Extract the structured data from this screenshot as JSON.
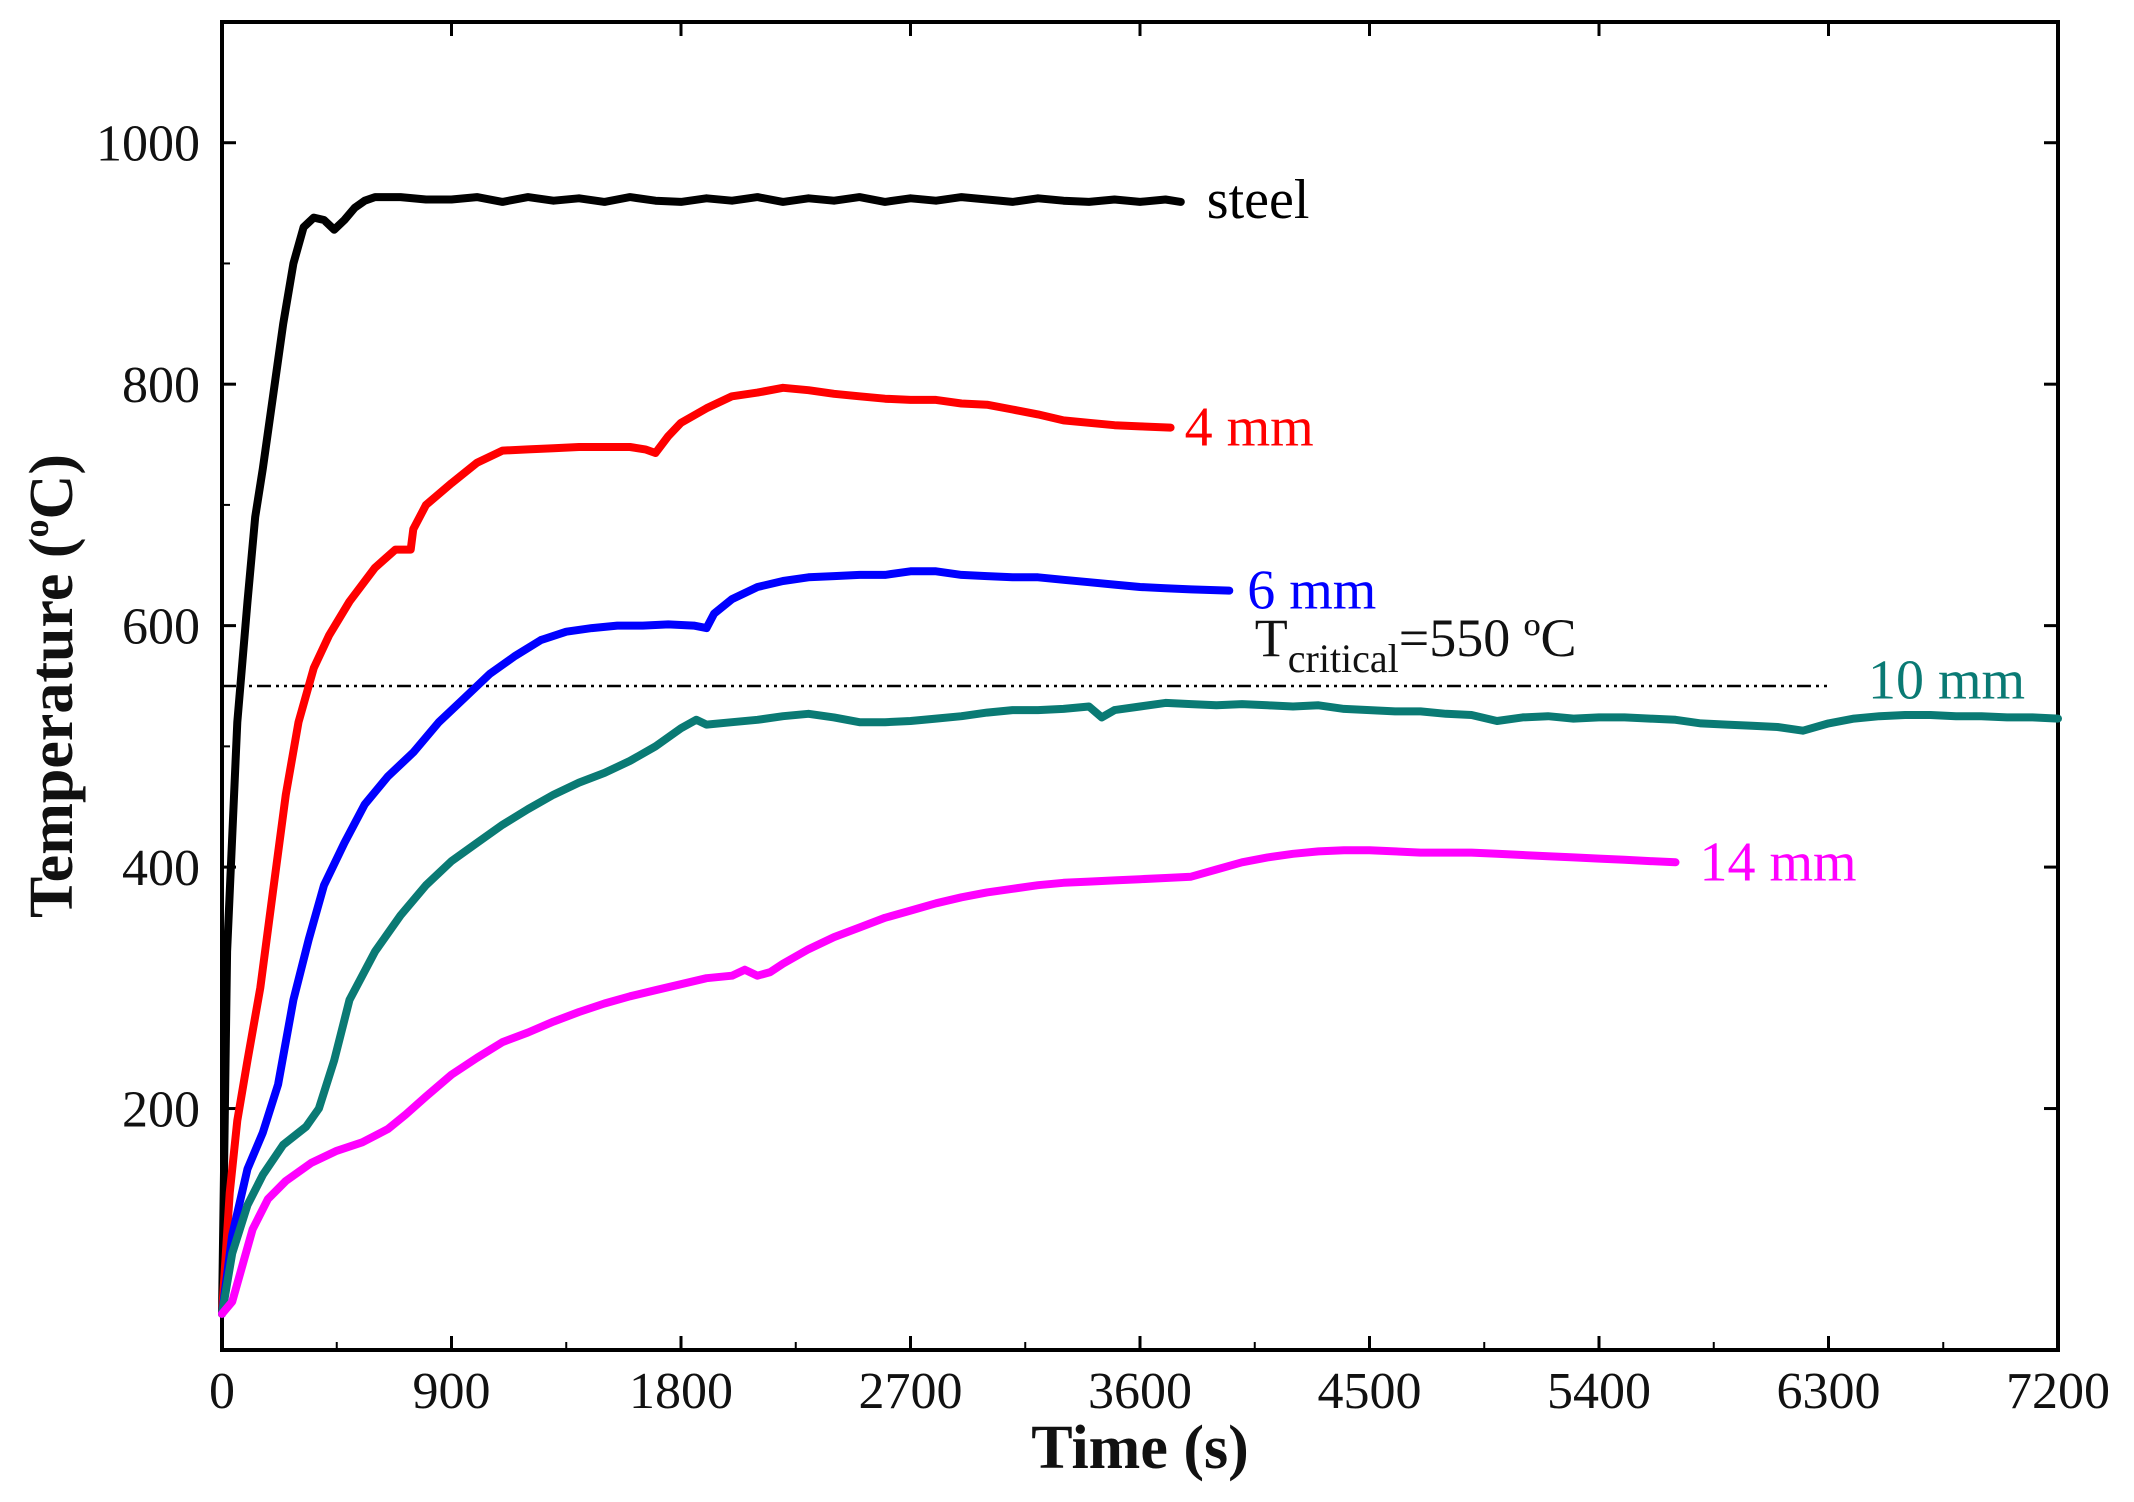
{
  "chart_data": {
    "type": "line",
    "title": "",
    "xlabel": "Time (s)",
    "ylabel_main": "Temperature (",
    "ylabel_sup": "o",
    "ylabel_tail": "C)",
    "xlim": [
      0,
      7200
    ],
    "ylim": [
      0,
      1100
    ],
    "xticks": [
      0,
      900,
      1800,
      2700,
      3600,
      4500,
      5400,
      6300,
      7200
    ],
    "yticks": [
      200,
      400,
      600,
      800,
      1000
    ],
    "series": [
      {
        "name": "steel",
        "color": "#000000",
        "points": [
          [
            0,
            30
          ],
          [
            20,
            330
          ],
          [
            60,
            520
          ],
          [
            100,
            620
          ],
          [
            130,
            690
          ],
          [
            160,
            730
          ],
          [
            200,
            790
          ],
          [
            240,
            850
          ],
          [
            280,
            900
          ],
          [
            320,
            930
          ],
          [
            360,
            938
          ],
          [
            400,
            936
          ],
          [
            440,
            928
          ],
          [
            480,
            936
          ],
          [
            520,
            946
          ],
          [
            560,
            952
          ],
          [
            600,
            955
          ],
          [
            700,
            955
          ],
          [
            800,
            953
          ],
          [
            900,
            953
          ],
          [
            1000,
            955
          ],
          [
            1100,
            951
          ],
          [
            1200,
            955
          ],
          [
            1300,
            952
          ],
          [
            1400,
            954
          ],
          [
            1500,
            951
          ],
          [
            1600,
            955
          ],
          [
            1700,
            952
          ],
          [
            1800,
            951
          ],
          [
            1900,
            954
          ],
          [
            2000,
            952
          ],
          [
            2100,
            955
          ],
          [
            2200,
            951
          ],
          [
            2300,
            954
          ],
          [
            2400,
            952
          ],
          [
            2500,
            955
          ],
          [
            2600,
            951
          ],
          [
            2700,
            954
          ],
          [
            2800,
            952
          ],
          [
            2900,
            955
          ],
          [
            3000,
            953
          ],
          [
            3100,
            951
          ],
          [
            3200,
            954
          ],
          [
            3300,
            952
          ],
          [
            3400,
            951
          ],
          [
            3500,
            953
          ],
          [
            3600,
            951
          ],
          [
            3700,
            953
          ],
          [
            3760,
            951
          ]
        ]
      },
      {
        "name": "4 mm",
        "color": "#ff0000",
        "points": [
          [
            0,
            30
          ],
          [
            30,
            130
          ],
          [
            60,
            190
          ],
          [
            100,
            240
          ],
          [
            150,
            300
          ],
          [
            200,
            380
          ],
          [
            250,
            460
          ],
          [
            300,
            520
          ],
          [
            360,
            565
          ],
          [
            420,
            592
          ],
          [
            500,
            620
          ],
          [
            600,
            648
          ],
          [
            680,
            663
          ],
          [
            740,
            663
          ],
          [
            750,
            680
          ],
          [
            800,
            700
          ],
          [
            900,
            718
          ],
          [
            1000,
            735
          ],
          [
            1100,
            745
          ],
          [
            1200,
            746
          ],
          [
            1300,
            747
          ],
          [
            1400,
            748
          ],
          [
            1500,
            748
          ],
          [
            1600,
            748
          ],
          [
            1660,
            746
          ],
          [
            1700,
            743
          ],
          [
            1750,
            757
          ],
          [
            1800,
            768
          ],
          [
            1900,
            780
          ],
          [
            2000,
            790
          ],
          [
            2100,
            793
          ],
          [
            2200,
            797
          ],
          [
            2300,
            795
          ],
          [
            2400,
            792
          ],
          [
            2500,
            790
          ],
          [
            2600,
            788
          ],
          [
            2700,
            787
          ],
          [
            2800,
            787
          ],
          [
            2900,
            784
          ],
          [
            3000,
            783
          ],
          [
            3100,
            779
          ],
          [
            3200,
            775
          ],
          [
            3300,
            770
          ],
          [
            3400,
            768
          ],
          [
            3500,
            766
          ],
          [
            3600,
            765
          ],
          [
            3720,
            764
          ]
        ]
      },
      {
        "name": "6 mm",
        "color": "#0000ff",
        "points": [
          [
            0,
            30
          ],
          [
            40,
            95
          ],
          [
            100,
            150
          ],
          [
            160,
            180
          ],
          [
            220,
            220
          ],
          [
            280,
            290
          ],
          [
            340,
            340
          ],
          [
            400,
            385
          ],
          [
            480,
            420
          ],
          [
            560,
            452
          ],
          [
            650,
            475
          ],
          [
            750,
            495
          ],
          [
            850,
            520
          ],
          [
            950,
            540
          ],
          [
            1050,
            560
          ],
          [
            1150,
            575
          ],
          [
            1250,
            588
          ],
          [
            1350,
            595
          ],
          [
            1450,
            598
          ],
          [
            1550,
            600
          ],
          [
            1650,
            600
          ],
          [
            1750,
            601
          ],
          [
            1850,
            600
          ],
          [
            1900,
            598
          ],
          [
            1930,
            610
          ],
          [
            2000,
            622
          ],
          [
            2100,
            632
          ],
          [
            2200,
            637
          ],
          [
            2300,
            640
          ],
          [
            2400,
            641
          ],
          [
            2500,
            642
          ],
          [
            2600,
            642
          ],
          [
            2700,
            645
          ],
          [
            2800,
            645
          ],
          [
            2900,
            642
          ],
          [
            3000,
            641
          ],
          [
            3100,
            640
          ],
          [
            3200,
            640
          ],
          [
            3300,
            638
          ],
          [
            3400,
            636
          ],
          [
            3500,
            634
          ],
          [
            3600,
            632
          ],
          [
            3700,
            631
          ],
          [
            3800,
            630
          ],
          [
            3950,
            629
          ]
        ]
      },
      {
        "name": "10 mm",
        "color": "#0a7a74",
        "points": [
          [
            0,
            30
          ],
          [
            40,
            80
          ],
          [
            100,
            120
          ],
          [
            160,
            145
          ],
          [
            240,
            170
          ],
          [
            330,
            185
          ],
          [
            380,
            200
          ],
          [
            440,
            240
          ],
          [
            500,
            290
          ],
          [
            600,
            330
          ],
          [
            700,
            360
          ],
          [
            800,
            385
          ],
          [
            900,
            405
          ],
          [
            1000,
            420
          ],
          [
            1100,
            435
          ],
          [
            1200,
            448
          ],
          [
            1300,
            460
          ],
          [
            1400,
            470
          ],
          [
            1500,
            478
          ],
          [
            1600,
            488
          ],
          [
            1700,
            500
          ],
          [
            1800,
            515
          ],
          [
            1860,
            522
          ],
          [
            1900,
            518
          ],
          [
            2000,
            520
          ],
          [
            2100,
            522
          ],
          [
            2200,
            525
          ],
          [
            2300,
            527
          ],
          [
            2400,
            524
          ],
          [
            2500,
            520
          ],
          [
            2600,
            520
          ],
          [
            2700,
            521
          ],
          [
            2800,
            523
          ],
          [
            2900,
            525
          ],
          [
            3000,
            528
          ],
          [
            3100,
            530
          ],
          [
            3200,
            530
          ],
          [
            3300,
            531
          ],
          [
            3400,
            533
          ],
          [
            3450,
            524
          ],
          [
            3500,
            530
          ],
          [
            3600,
            533
          ],
          [
            3700,
            536
          ],
          [
            3800,
            535
          ],
          [
            3900,
            534
          ],
          [
            4000,
            535
          ],
          [
            4100,
            534
          ],
          [
            4200,
            533
          ],
          [
            4300,
            534
          ],
          [
            4400,
            531
          ],
          [
            4500,
            530
          ],
          [
            4600,
            529
          ],
          [
            4700,
            529
          ],
          [
            4800,
            527
          ],
          [
            4900,
            526
          ],
          [
            5000,
            521
          ],
          [
            5100,
            524
          ],
          [
            5200,
            525
          ],
          [
            5300,
            523
          ],
          [
            5400,
            524
          ],
          [
            5500,
            524
          ],
          [
            5600,
            523
          ],
          [
            5700,
            522
          ],
          [
            5800,
            519
          ],
          [
            5900,
            518
          ],
          [
            6000,
            517
          ],
          [
            6100,
            516
          ],
          [
            6200,
            513
          ],
          [
            6300,
            519
          ],
          [
            6400,
            523
          ],
          [
            6500,
            525
          ],
          [
            6600,
            526
          ],
          [
            6700,
            526
          ],
          [
            6800,
            525
          ],
          [
            6900,
            525
          ],
          [
            7000,
            524
          ],
          [
            7100,
            524
          ],
          [
            7200,
            523
          ]
        ]
      },
      {
        "name": "14 mm",
        "color": "#ff00ff",
        "points": [
          [
            0,
            30
          ],
          [
            40,
            40
          ],
          [
            80,
            70
          ],
          [
            120,
            100
          ],
          [
            180,
            125
          ],
          [
            250,
            140
          ],
          [
            350,
            155
          ],
          [
            450,
            165
          ],
          [
            550,
            172
          ],
          [
            650,
            183
          ],
          [
            720,
            195
          ],
          [
            800,
            210
          ],
          [
            900,
            228
          ],
          [
            1000,
            242
          ],
          [
            1100,
            255
          ],
          [
            1200,
            263
          ],
          [
            1300,
            272
          ],
          [
            1400,
            280
          ],
          [
            1500,
            287
          ],
          [
            1600,
            293
          ],
          [
            1700,
            298
          ],
          [
            1800,
            303
          ],
          [
            1900,
            308
          ],
          [
            2000,
            310
          ],
          [
            2050,
            315
          ],
          [
            2100,
            310
          ],
          [
            2150,
            313
          ],
          [
            2200,
            320
          ],
          [
            2300,
            332
          ],
          [
            2400,
            342
          ],
          [
            2500,
            350
          ],
          [
            2600,
            358
          ],
          [
            2700,
            364
          ],
          [
            2800,
            370
          ],
          [
            2900,
            375
          ],
          [
            3000,
            379
          ],
          [
            3100,
            382
          ],
          [
            3200,
            385
          ],
          [
            3300,
            387
          ],
          [
            3400,
            388
          ],
          [
            3500,
            389
          ],
          [
            3600,
            390
          ],
          [
            3700,
            391
          ],
          [
            3800,
            392
          ],
          [
            3900,
            398
          ],
          [
            4000,
            404
          ],
          [
            4100,
            408
          ],
          [
            4200,
            411
          ],
          [
            4300,
            413
          ],
          [
            4400,
            414
          ],
          [
            4500,
            414
          ],
          [
            4600,
            413
          ],
          [
            4700,
            412
          ],
          [
            4800,
            412
          ],
          [
            4900,
            412
          ],
          [
            5000,
            411
          ],
          [
            5100,
            410
          ],
          [
            5200,
            409
          ],
          [
            5300,
            408
          ],
          [
            5400,
            407
          ],
          [
            5500,
            406
          ],
          [
            5600,
            405
          ],
          [
            5700,
            404
          ]
        ]
      }
    ],
    "reference_line": {
      "value": 550,
      "x_range": [
        0,
        6300
      ],
      "label_main": "T",
      "label_sub": "critical",
      "label_tail": "=550 ºC"
    }
  }
}
